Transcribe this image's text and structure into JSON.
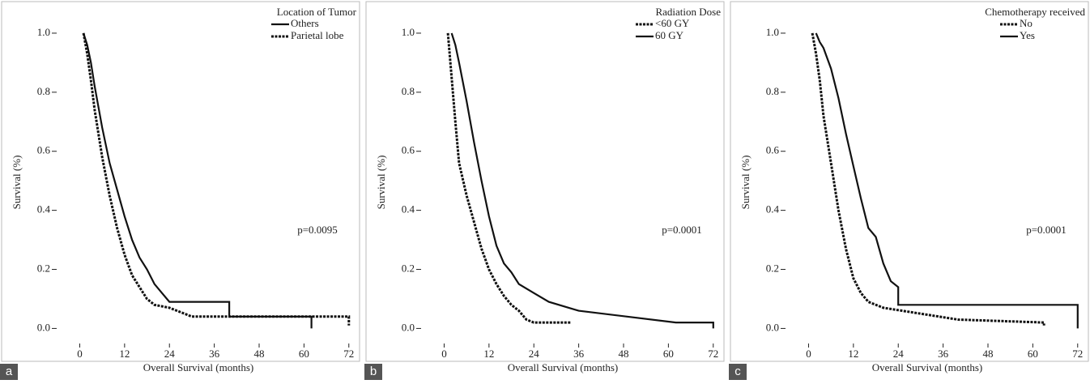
{
  "chart_data": [
    {
      "type": "line",
      "panel_label": "a",
      "legend_title": "Location of Tumor",
      "annotation": "p=0.0095",
      "x_label": "Overall Survival (months)",
      "y_label": "Survival (%)",
      "xlim": [
        -4,
        74
      ],
      "ylim": [
        -0.04,
        1.03
      ],
      "xticks": [
        0,
        12,
        24,
        36,
        48,
        60,
        72
      ],
      "yticks": [
        {
          "value": 0,
          "label": "0.0"
        },
        0.2,
        0.4,
        0.6,
        0.8,
        {
          "value": 1,
          "label": "1.0"
        }
      ],
      "series": [
        {
          "name": "Others",
          "style": "solid",
          "color": "#111",
          "x": [
            1,
            2,
            3,
            4,
            6,
            8,
            10,
            12,
            14,
            16,
            18,
            20,
            22,
            24,
            40,
            40,
            62,
            62
          ],
          "values": [
            1,
            0.96,
            0.9,
            0.82,
            0.68,
            0.56,
            0.47,
            0.38,
            0.3,
            0.24,
            0.2,
            0.15,
            0.12,
            0.09,
            0.09,
            0.04,
            0.04,
            0
          ]
        },
        {
          "name": "Parietal lobe",
          "style": "dashed",
          "color": "#111",
          "x": [
            1,
            2,
            3,
            4,
            6,
            8,
            10,
            12,
            14,
            16,
            18,
            20,
            24,
            30,
            72,
            72
          ],
          "values": [
            1,
            0.93,
            0.84,
            0.74,
            0.58,
            0.45,
            0.34,
            0.25,
            0.18,
            0.14,
            0.1,
            0.08,
            0.07,
            0.04,
            0.04,
            0.01
          ]
        }
      ]
    },
    {
      "type": "line",
      "panel_label": "b",
      "legend_title": "Radiation Dose",
      "annotation": "p=0.0001",
      "x_label": "Overall Survival (months)",
      "y_label": "Survival (%)",
      "xlim": [
        -4,
        74
      ],
      "ylim": [
        -0.04,
        1.03
      ],
      "xticks": [
        0,
        12,
        24,
        36,
        48,
        60,
        72
      ],
      "yticks": [
        {
          "value": 0,
          "label": "0.0"
        },
        0.2,
        0.4,
        0.6,
        0.8,
        {
          "value": 1,
          "label": "1.0"
        }
      ],
      "series": [
        {
          "name": "<60 GY",
          "style": "dashed",
          "color": "#111",
          "x": [
            1,
            2,
            3,
            4,
            6,
            8,
            10,
            12,
            14,
            16,
            18,
            20,
            22,
            24,
            34
          ],
          "values": [
            1,
            0.85,
            0.7,
            0.56,
            0.45,
            0.36,
            0.27,
            0.2,
            0.15,
            0.11,
            0.08,
            0.06,
            0.03,
            0.02,
            0.02
          ]
        },
        {
          "name": "60 GY",
          "style": "solid",
          "color": "#111",
          "x": [
            2,
            3,
            4,
            6,
            8,
            10,
            12,
            14,
            16,
            18,
            20,
            24,
            28,
            36,
            62,
            72,
            72
          ],
          "values": [
            1,
            0.96,
            0.9,
            0.77,
            0.63,
            0.5,
            0.38,
            0.28,
            0.22,
            0.19,
            0.15,
            0.12,
            0.09,
            0.06,
            0.02,
            0.02,
            0
          ]
        }
      ]
    },
    {
      "type": "line",
      "panel_label": "c",
      "legend_title": "Chemotherapy received",
      "annotation": "p=0.0001",
      "x_label": "Overall Survival (months)",
      "y_label": "Survival (%)",
      "xlim": [
        -4,
        74
      ],
      "ylim": [
        -0.04,
        1.03
      ],
      "xticks": [
        0,
        12,
        24,
        36,
        48,
        60,
        72
      ],
      "yticks": [
        {
          "value": 0,
          "label": "0.0"
        },
        0.2,
        0.4,
        0.6,
        0.8,
        {
          "value": 1,
          "label": "1.0"
        }
      ],
      "series": [
        {
          "name": "No",
          "style": "dashed",
          "color": "#111",
          "x": [
            1,
            2,
            3,
            4,
            6,
            8,
            10,
            12,
            14,
            16,
            20,
            30,
            40,
            63,
            63
          ],
          "values": [
            1,
            0.93,
            0.84,
            0.72,
            0.56,
            0.4,
            0.27,
            0.17,
            0.12,
            0.09,
            0.07,
            0.05,
            0.03,
            0.02,
            0.01
          ]
        },
        {
          "name": "Yes",
          "style": "solid",
          "color": "#111",
          "x": [
            2,
            3,
            4,
            6,
            8,
            10,
            12,
            14,
            16,
            18,
            20,
            22,
            24,
            24,
            72,
            72
          ],
          "values": [
            1,
            0.97,
            0.95,
            0.88,
            0.78,
            0.66,
            0.55,
            0.44,
            0.34,
            0.31,
            0.22,
            0.16,
            0.14,
            0.08,
            0.08,
            0
          ]
        }
      ]
    }
  ]
}
